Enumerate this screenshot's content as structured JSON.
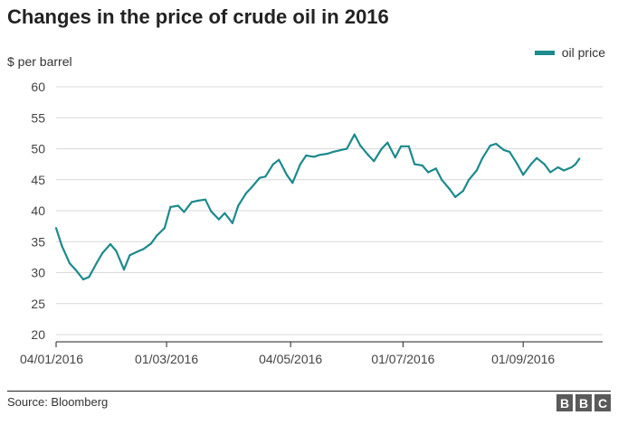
{
  "title": "Changes in the price of crude oil in 2016",
  "footer": {
    "source": "Source: Bloomberg",
    "logo": [
      "B",
      "B",
      "C"
    ]
  },
  "colors": {
    "line": "#1d8a8c",
    "grid": "#d9d9d9",
    "axis": "#222222"
  },
  "chart_data": {
    "type": "line",
    "title": "Changes in the price of crude oil in 2016",
    "ylabel": "$ per barrel",
    "xlabel": "",
    "ylim": [
      20,
      60
    ],
    "yticks": [
      20,
      25,
      30,
      35,
      40,
      45,
      50,
      55,
      60
    ],
    "xticks": [
      "04/01/2016",
      "01/03/2016",
      "04/05/2016",
      "01/07/2016",
      "01/09/2016"
    ],
    "grid": true,
    "legend": "top-right",
    "series": [
      {
        "name": "oil price",
        "x": [
          "2016-01-04",
          "2016-01-07",
          "2016-01-11",
          "2016-01-14",
          "2016-01-18",
          "2016-01-21",
          "2016-01-25",
          "2016-01-28",
          "2016-02-01",
          "2016-02-04",
          "2016-02-08",
          "2016-02-11",
          "2016-02-15",
          "2016-02-18",
          "2016-02-22",
          "2016-02-25",
          "2016-02-29",
          "2016-03-03",
          "2016-03-07",
          "2016-03-10",
          "2016-03-14",
          "2016-03-17",
          "2016-03-21",
          "2016-03-24",
          "2016-03-28",
          "2016-03-31",
          "2016-04-04",
          "2016-04-07",
          "2016-04-11",
          "2016-04-14",
          "2016-04-18",
          "2016-04-21",
          "2016-04-25",
          "2016-04-28",
          "2016-05-02",
          "2016-05-05",
          "2016-05-09",
          "2016-05-12",
          "2016-05-16",
          "2016-05-19",
          "2016-05-23",
          "2016-05-26",
          "2016-05-30",
          "2016-06-02",
          "2016-06-06",
          "2016-06-09",
          "2016-06-13",
          "2016-06-16",
          "2016-06-20",
          "2016-06-23",
          "2016-06-27",
          "2016-06-30",
          "2016-07-04",
          "2016-07-07",
          "2016-07-11",
          "2016-07-14",
          "2016-07-18",
          "2016-07-21",
          "2016-07-25",
          "2016-07-28",
          "2016-08-01",
          "2016-08-04",
          "2016-08-08",
          "2016-08-11",
          "2016-08-15",
          "2016-08-18",
          "2016-08-22",
          "2016-08-25",
          "2016-08-29",
          "2016-09-01",
          "2016-09-05",
          "2016-09-08",
          "2016-09-12",
          "2016-09-15",
          "2016-09-19",
          "2016-09-22",
          "2016-09-26",
          "2016-09-28",
          "2016-09-30"
        ],
        "values": [
          37.2,
          34.3,
          31.5,
          30.5,
          28.9,
          29.3,
          31.6,
          33.2,
          34.6,
          33.5,
          30.5,
          32.8,
          33.4,
          33.8,
          34.7,
          36.0,
          37.2,
          40.6,
          40.8,
          39.8,
          41.4,
          41.6,
          41.8,
          39.9,
          38.6,
          39.6,
          38.0,
          40.8,
          42.8,
          43.8,
          45.3,
          45.5,
          47.5,
          48.2,
          45.8,
          44.5,
          47.5,
          48.9,
          48.7,
          49.0,
          49.2,
          49.5,
          49.8,
          50.0,
          52.3,
          50.5,
          49.0,
          48.0,
          50.0,
          51.0,
          48.6,
          50.4,
          50.4,
          47.5,
          47.3,
          46.2,
          46.8,
          45.0,
          43.5,
          42.2,
          43.2,
          45.0,
          46.5,
          48.5,
          50.5,
          50.8,
          49.8,
          49.5,
          47.5,
          45.8,
          47.5,
          48.5,
          47.5,
          46.2,
          47.0,
          46.5,
          47.0,
          47.5,
          48.4
        ]
      }
    ]
  }
}
